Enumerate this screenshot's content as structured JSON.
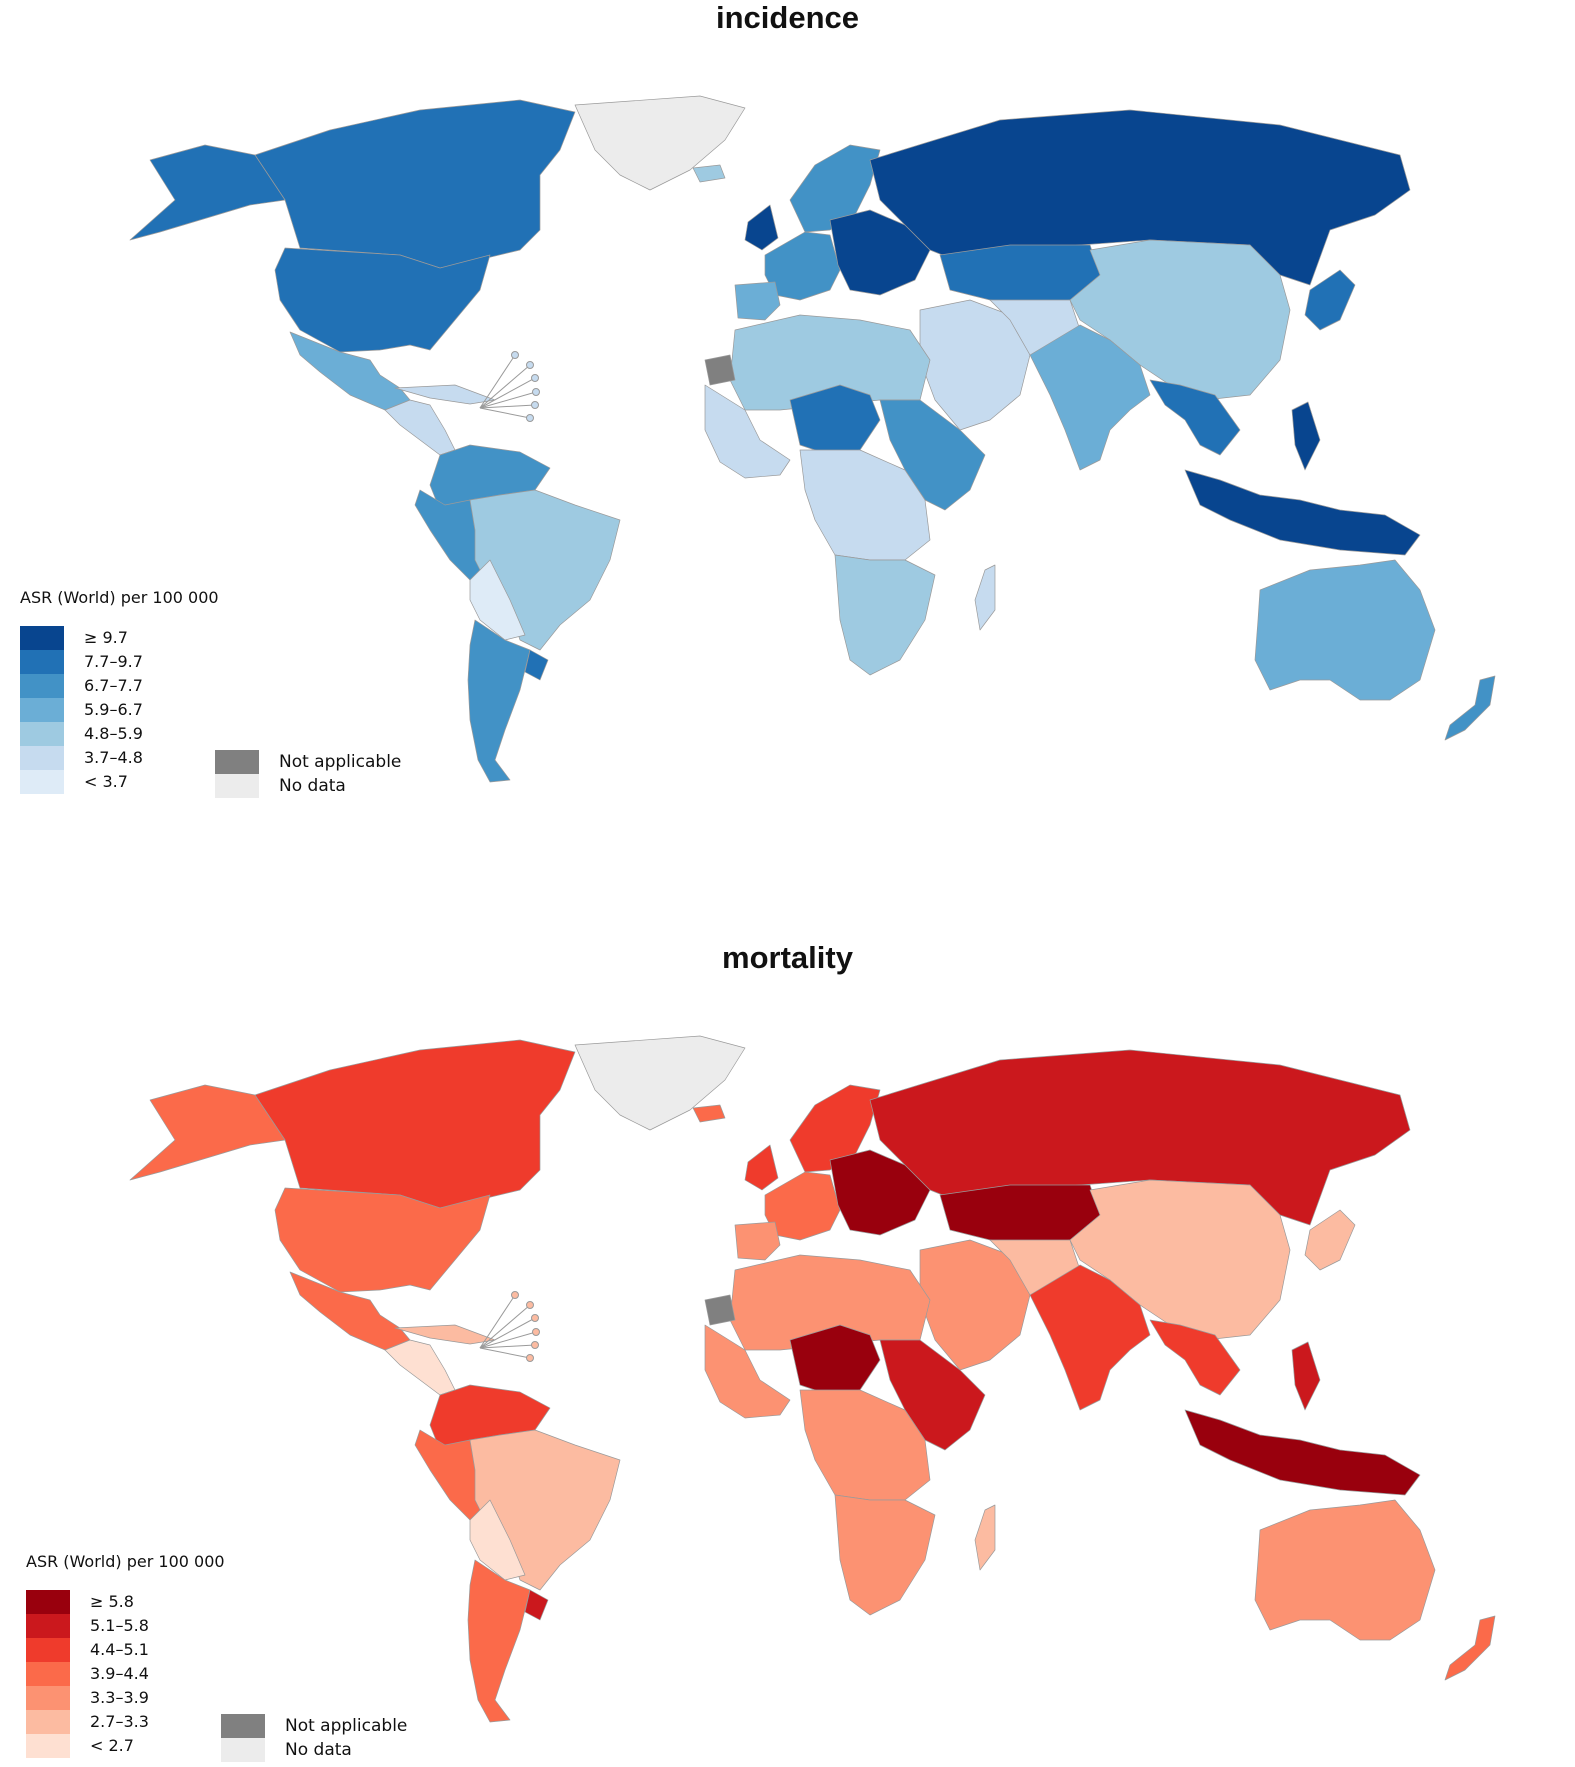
{
  "maps": [
    {
      "title": "incidence",
      "legend_title": "ASR (World) per 100 000",
      "bins": [
        {
          "label": "≥ 9.7",
          "color": "#08458f"
        },
        {
          "label": "7.7–9.7",
          "color": "#2171b5"
        },
        {
          "label": "6.7–7.7",
          "color": "#4292c6"
        },
        {
          "label": "5.9–6.7",
          "color": "#6baed6"
        },
        {
          "label": "4.8–5.9",
          "color": "#9ecae1"
        },
        {
          "label": "3.7–4.8",
          "color": "#c6dbef"
        },
        {
          "label": "< 3.7",
          "color": "#deebf7"
        }
      ],
      "extra": [
        {
          "label": "Not applicable",
          "color": "#808080"
        },
        {
          "label": "No data",
          "color": "#ececec"
        }
      ],
      "regions": {
        "greenland": "#ececec",
        "canada": "#2171b5",
        "alaska": "#2171b5",
        "usa": "#2171b5",
        "mexico": "#6baed6",
        "central_america": "#c6dbef",
        "caribbean": "#c6dbef",
        "colombia_venezuela": "#4292c6",
        "peru_ecuador": "#4292c6",
        "brazil": "#9ecae1",
        "bolivia_paraguay": "#deebf7",
        "argentina_chile": "#4292c6",
        "uruguay": "#2171b5",
        "uk_ireland": "#08458f",
        "iceland": "#9ecae1",
        "scandinavia": "#4292c6",
        "western_europe": "#4292c6",
        "eastern_europe": "#08458f",
        "iberia": "#6baed6",
        "russia": "#08458f",
        "kazakhstan": "#2171b5",
        "china_mongolia": "#9ecae1",
        "japan_korea": "#2171b5",
        "middle_east": "#c6dbef",
        "central_asia": "#c6dbef",
        "india_region": "#6baed6",
        "southeast_asia": "#2171b5",
        "indonesia_png": "#08458f",
        "philippines": "#08458f",
        "north_africa": "#9ecae1",
        "western_sahara": "#808080",
        "west_africa": "#c6dbef",
        "sahel": "#2171b5",
        "east_africa": "#4292c6",
        "central_africa": "#c6dbef",
        "southern_africa": "#9ecae1",
        "madagascar": "#c6dbef",
        "australia": "#6baed6",
        "new_zealand": "#4292c6"
      }
    },
    {
      "title": "mortality",
      "legend_title": "ASR (World) per 100 000",
      "bins": [
        {
          "label": "≥ 5.8",
          "color": "#99000d"
        },
        {
          "label": "5.1–5.8",
          "color": "#cb181d"
        },
        {
          "label": "4.4–5.1",
          "color": "#ef3b2c"
        },
        {
          "label": "3.9–4.4",
          "color": "#fb6a4a"
        },
        {
          "label": "3.3–3.9",
          "color": "#fc9272"
        },
        {
          "label": "2.7–3.3",
          "color": "#fcbba1"
        },
        {
          "label": "< 2.7",
          "color": "#fee0d2"
        }
      ],
      "extra": [
        {
          "label": "Not applicable",
          "color": "#808080"
        },
        {
          "label": "No data",
          "color": "#ececec"
        }
      ],
      "regions": {
        "greenland": "#ececec",
        "canada": "#ef3b2c",
        "alaska": "#fb6a4a",
        "usa": "#fb6a4a",
        "mexico": "#fb6a4a",
        "central_america": "#fee0d2",
        "caribbean": "#fcbba1",
        "colombia_venezuela": "#ef3b2c",
        "peru_ecuador": "#fb6a4a",
        "brazil": "#fcbba1",
        "bolivia_paraguay": "#fee0d2",
        "argentina_chile": "#fb6a4a",
        "uruguay": "#cb181d",
        "uk_ireland": "#ef3b2c",
        "iceland": "#fb6a4a",
        "scandinavia": "#ef3b2c",
        "western_europe": "#fb6a4a",
        "eastern_europe": "#99000d",
        "iberia": "#fc9272",
        "russia": "#cb181d",
        "kazakhstan": "#99000d",
        "china_mongolia": "#fcbba1",
        "japan_korea": "#fcbba1",
        "middle_east": "#fc9272",
        "central_asia": "#fcbba1",
        "india_region": "#ef3b2c",
        "southeast_asia": "#ef3b2c",
        "indonesia_png": "#99000d",
        "philippines": "#cb181d",
        "north_africa": "#fc9272",
        "western_sahara": "#808080",
        "west_africa": "#fc9272",
        "sahel": "#99000d",
        "east_africa": "#cb181d",
        "central_africa": "#fc9272",
        "southern_africa": "#fc9272",
        "madagascar": "#fcbba1",
        "australia": "#fc9272",
        "new_zealand": "#fb6a4a"
      }
    }
  ]
}
